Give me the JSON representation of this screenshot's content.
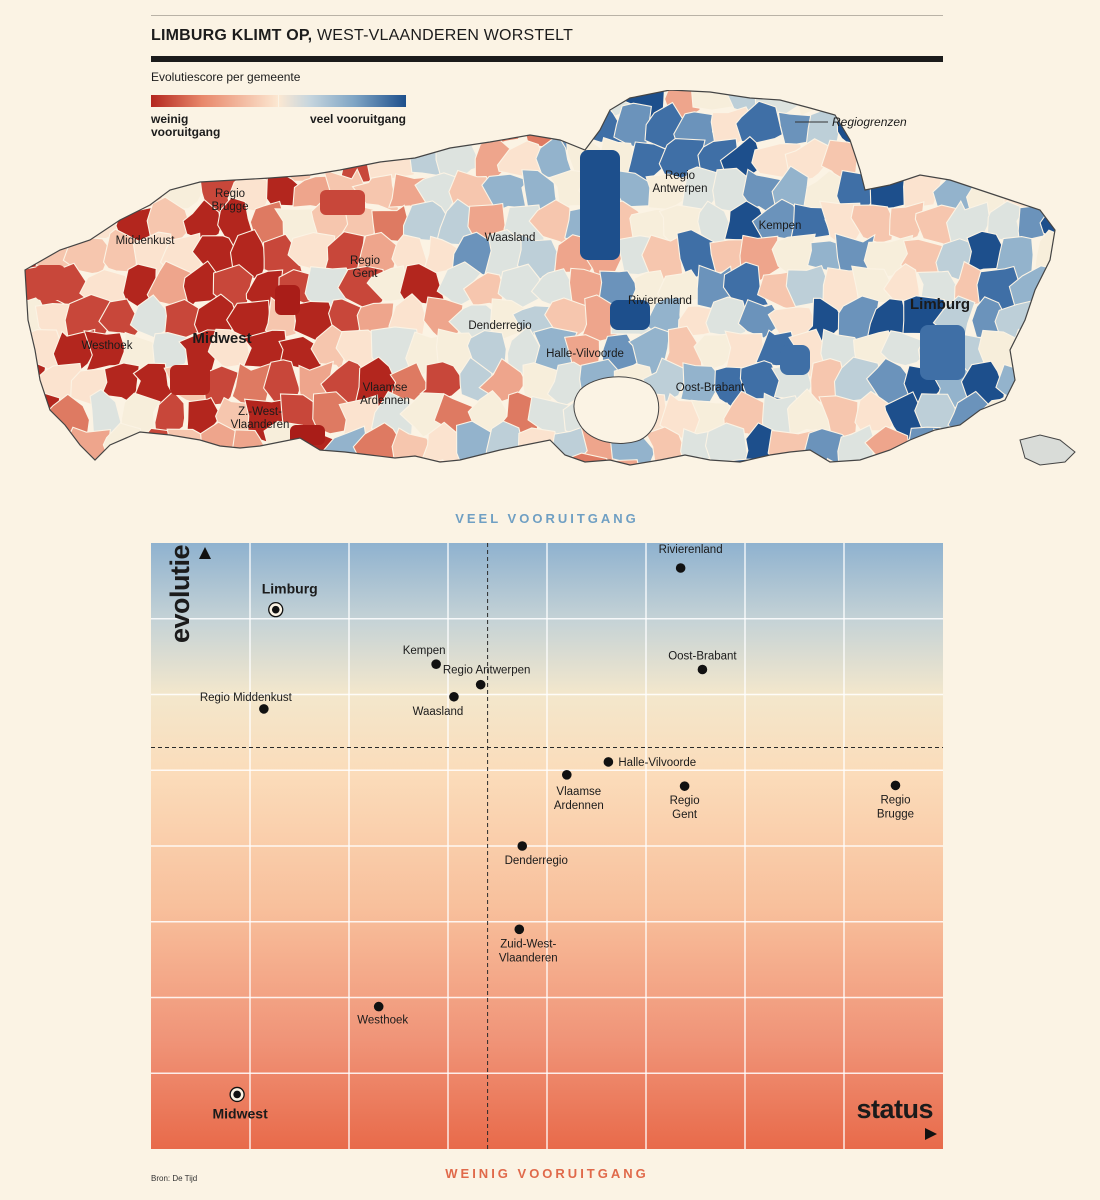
{
  "header": {
    "title_bold": "LIMBURG KLIMT OP,",
    "title_rest": " WEST-VLAANDEREN WORSTELT"
  },
  "legend": {
    "title": "Evolutiescore per gemeente",
    "low_label": "weinig vooruitgang",
    "high_label": "veel vooruitgang",
    "colors": {
      "low": "#b3261e",
      "mid": "#fce8d2",
      "high": "#1d4f8c"
    }
  },
  "map": {
    "border_label": "Regiogrenzen",
    "regions": [
      "Regio Antwerpen",
      "Kempen",
      "Waasland",
      "Regio Brugge",
      "Middenkust",
      "Regio Gent",
      "Rivierenland",
      "Limburg",
      "Denderregio",
      "Westhoek",
      "Midwest",
      "Halle-Vilvoorde",
      "Oost-Brabant",
      "Vlaamse Ardennen",
      "Z.-West-Vlaanderen"
    ]
  },
  "chart_data": {
    "type": "scatter",
    "title": "",
    "xlabel": "status",
    "ylabel": "evolutie",
    "top_label": "VEEL VOORUITGANG",
    "bottom_label": "WEINIG VOORUITGANG",
    "xlim": [
      0,
      8
    ],
    "ylim": [
      0,
      8
    ],
    "x_reference": 3.4,
    "y_reference": 5.3,
    "grid": true,
    "points": [
      {
        "label": "Limburg",
        "x": 1.26,
        "y": 7.12,
        "emphasis": true
      },
      {
        "label": "Midwest",
        "x": 0.87,
        "y": 0.72,
        "emphasis": true
      },
      {
        "label": "Rivierenland",
        "x": 5.35,
        "y": 7.67
      },
      {
        "label": "Oost-Brabant",
        "x": 5.57,
        "y": 6.33
      },
      {
        "label": "Kempen",
        "x": 2.88,
        "y": 6.4
      },
      {
        "label": "Regio Antwerpen",
        "x": 3.33,
        "y": 6.13
      },
      {
        "label": "Waasland",
        "x": 3.06,
        "y": 5.97
      },
      {
        "label": "Regio Middenkust",
        "x": 1.14,
        "y": 5.81
      },
      {
        "label": "Halle-Vilvoorde",
        "x": 4.62,
        "y": 5.11
      },
      {
        "label": "Vlaamse Ardennen",
        "x": 4.2,
        "y": 4.94
      },
      {
        "label": "Regio Gent",
        "x": 5.39,
        "y": 4.79
      },
      {
        "label": "Regio Brugge",
        "x": 7.52,
        "y": 4.8
      },
      {
        "label": "Denderregio",
        "x": 3.75,
        "y": 4.0
      },
      {
        "label": "Zuid-West-Vlaanderen",
        "x": 3.72,
        "y": 2.9
      },
      {
        "label": "Westhoek",
        "x": 2.3,
        "y": 1.88
      }
    ]
  },
  "footer": {
    "source": "Bron: De Tijd"
  }
}
